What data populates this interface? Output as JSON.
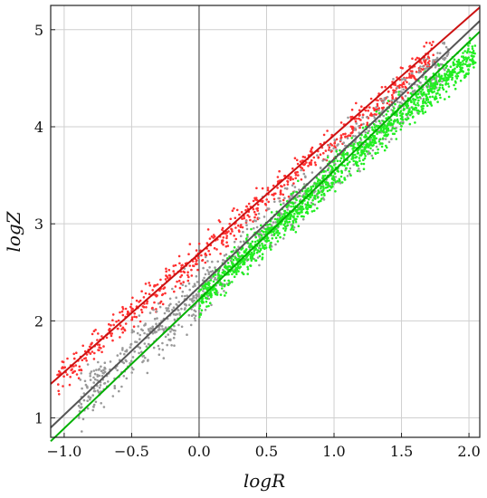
{
  "chart_data": {
    "type": "scatter",
    "xlabel": "logR",
    "ylabel": "logZ",
    "xlim": [
      -1.1,
      2.08
    ],
    "ylim": [
      0.8,
      5.25
    ],
    "grid": true,
    "x_ticks": [
      -1.0,
      -0.5,
      0.0,
      0.5,
      1.0,
      1.5,
      2.0
    ],
    "x_tick_labels": [
      "−1.0",
      "−0.5",
      "0.0",
      "0.5",
      "1.0",
      "1.5",
      "2.0"
    ],
    "y_ticks": [
      1,
      2,
      3,
      4,
      5
    ],
    "y_tick_labels": [
      "1",
      "2",
      "3",
      "4",
      "5"
    ],
    "reference_line_x": 0.0,
    "lines": [
      {
        "color": "#cc1111",
        "x": [
          -1.1,
          2.08
        ],
        "y": [
          1.35,
          5.23
        ]
      },
      {
        "color": "#555555",
        "x": [
          -1.1,
          2.08
        ],
        "y": [
          0.9,
          5.09
        ]
      },
      {
        "color": "#00b000",
        "x": [
          -1.1,
          2.08
        ],
        "y": [
          0.76,
          4.98
        ]
      }
    ],
    "series": [
      {
        "color": "#ff3030",
        "x_range": [
          -1.05,
          1.75
        ],
        "intercept": 2.66,
        "slope": 1.2,
        "spread": 0.08,
        "count": 700
      },
      {
        "color": "#999999",
        "x_range": [
          -0.9,
          1.85
        ],
        "intercept": 2.3,
        "slope": 1.3,
        "spread": 0.13,
        "count": 900
      },
      {
        "color": "#22ee22",
        "x_range": [
          0.0,
          2.05
        ],
        "intercept": 2.22,
        "slope": 1.3,
        "spread": 0.09,
        "count": 1300
      }
    ]
  }
}
